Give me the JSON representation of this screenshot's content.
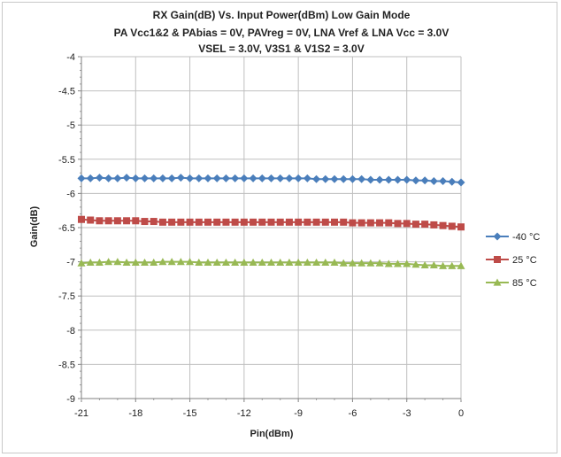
{
  "chart_data": {
    "type": "line",
    "title_lines": [
      "RX Gain(dB)  Vs. Input Power(dBm)  Low Gain Mode",
      "PA Vcc1&2 & PAbias = 0V, PAVreg = 0V, LNA Vref & LNA Vcc = 3.0V",
      "VSEL = 3.0V, V3S1 & V1S2 = 3.0V"
    ],
    "xlabel": "Pin(dBm)",
    "ylabel": "Gain(dB)",
    "xlim": [
      -21,
      0
    ],
    "ylim": [
      -9,
      -4
    ],
    "xticks": [
      -21,
      -18,
      -15,
      -12,
      -9,
      -6,
      -3,
      0
    ],
    "yticks": [
      -4,
      -4.5,
      -5,
      -5.5,
      -6,
      -6.5,
      -7,
      -7.5,
      -8,
      -8.5,
      -9
    ],
    "grid": true,
    "legend_position": "right",
    "x": [
      -21,
      -20.5,
      -20,
      -19.5,
      -19,
      -18.5,
      -18,
      -17.5,
      -17,
      -16.5,
      -16,
      -15.5,
      -15,
      -14.5,
      -14,
      -13.5,
      -13,
      -12.5,
      -12,
      -11.5,
      -11,
      -10.5,
      -10,
      -9.5,
      -9,
      -8.5,
      -8,
      -7.5,
      -7,
      -6.5,
      -6,
      -5.5,
      -5,
      -4.5,
      -4,
      -3.5,
      -3,
      -2.5,
      -2,
      -1.5,
      -1,
      -0.5,
      0
    ],
    "series": [
      {
        "name": "-40 °C",
        "color": "#4a7ebb",
        "marker": "diamond",
        "values": [
          -5.78,
          -5.78,
          -5.77,
          -5.78,
          -5.78,
          -5.77,
          -5.78,
          -5.78,
          -5.78,
          -5.78,
          -5.78,
          -5.77,
          -5.78,
          -5.78,
          -5.78,
          -5.78,
          -5.78,
          -5.78,
          -5.78,
          -5.78,
          -5.78,
          -5.78,
          -5.78,
          -5.78,
          -5.78,
          -5.78,
          -5.79,
          -5.79,
          -5.79,
          -5.79,
          -5.79,
          -5.79,
          -5.8,
          -5.8,
          -5.8,
          -5.8,
          -5.8,
          -5.81,
          -5.81,
          -5.82,
          -5.82,
          -5.83,
          -5.84
        ]
      },
      {
        "name": "25 °C",
        "color": "#be4b48",
        "marker": "square",
        "values": [
          -6.38,
          -6.39,
          -6.4,
          -6.4,
          -6.4,
          -6.4,
          -6.4,
          -6.41,
          -6.41,
          -6.42,
          -6.42,
          -6.42,
          -6.42,
          -6.42,
          -6.42,
          -6.42,
          -6.42,
          -6.42,
          -6.42,
          -6.42,
          -6.42,
          -6.42,
          -6.42,
          -6.42,
          -6.42,
          -6.42,
          -6.42,
          -6.42,
          -6.42,
          -6.42,
          -6.43,
          -6.43,
          -6.43,
          -6.43,
          -6.43,
          -6.44,
          -6.44,
          -6.45,
          -6.45,
          -6.46,
          -6.47,
          -6.48,
          -6.49
        ]
      },
      {
        "name": "85 °C",
        "color": "#98b954",
        "marker": "triangle",
        "values": [
          -7.02,
          -7.01,
          -7.01,
          -7.0,
          -7.0,
          -7.01,
          -7.01,
          -7.01,
          -7.01,
          -7.0,
          -7.0,
          -7.0,
          -7.0,
          -7.01,
          -7.01,
          -7.01,
          -7.01,
          -7.01,
          -7.01,
          -7.01,
          -7.01,
          -7.01,
          -7.01,
          -7.01,
          -7.01,
          -7.01,
          -7.01,
          -7.01,
          -7.01,
          -7.02,
          -7.02,
          -7.02,
          -7.02,
          -7.02,
          -7.03,
          -7.03,
          -7.03,
          -7.04,
          -7.05,
          -7.05,
          -7.06,
          -7.06,
          -7.06
        ]
      }
    ]
  }
}
